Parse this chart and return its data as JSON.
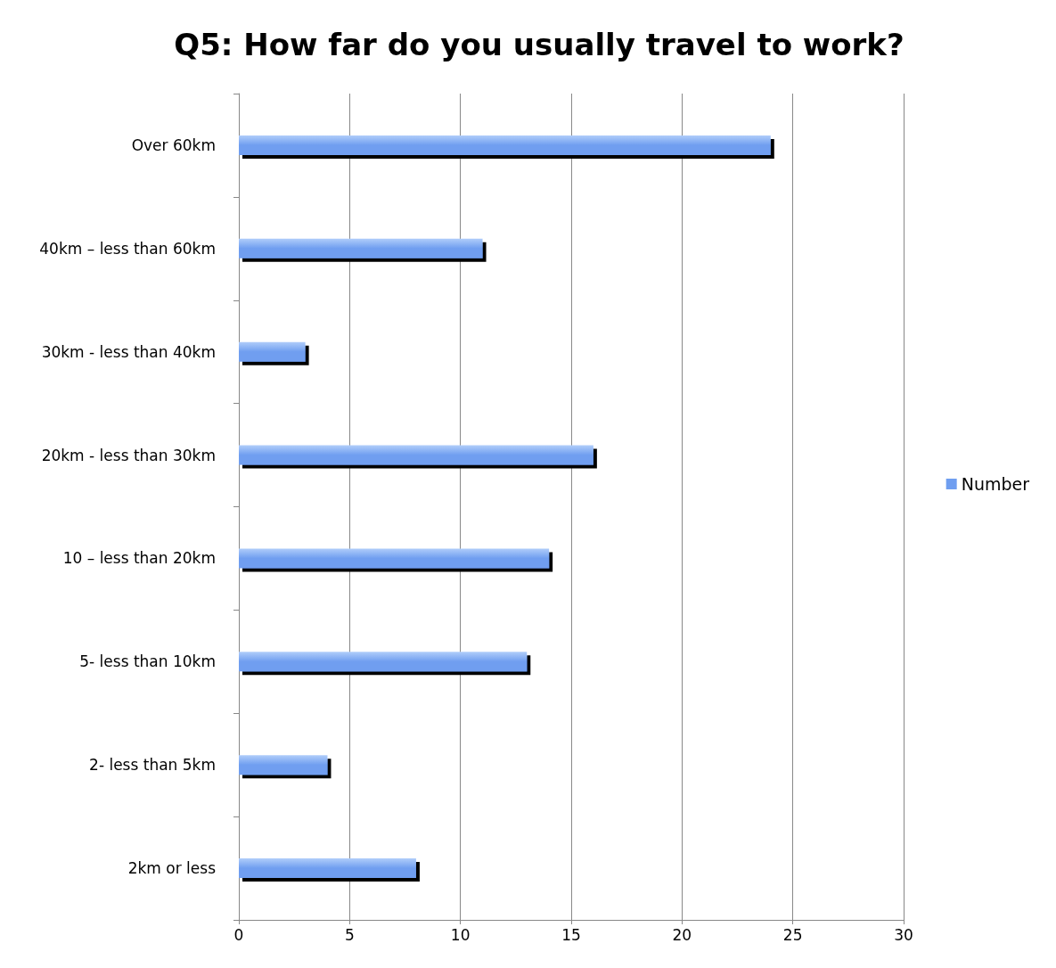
{
  "chart_data": {
    "type": "bar",
    "orientation": "horizontal",
    "title": "Q5: How far do you usually travel to work?",
    "categories": [
      "Over 60km",
      "40km – less than 60km",
      "30km - less than 40km",
      "20km - less than 30km",
      "10 – less than 20km",
      "5- less than 10km",
      "2- less than 5km",
      "2km or less"
    ],
    "series": [
      {
        "name": "Number",
        "color": "#6f9ef0",
        "values": [
          24,
          11,
          3,
          16,
          14,
          13,
          4,
          8
        ]
      }
    ],
    "xlim": [
      0,
      30
    ],
    "xticks": [
      0,
      5,
      10,
      15,
      20,
      25,
      30
    ],
    "grid": "x",
    "legend": "right"
  }
}
